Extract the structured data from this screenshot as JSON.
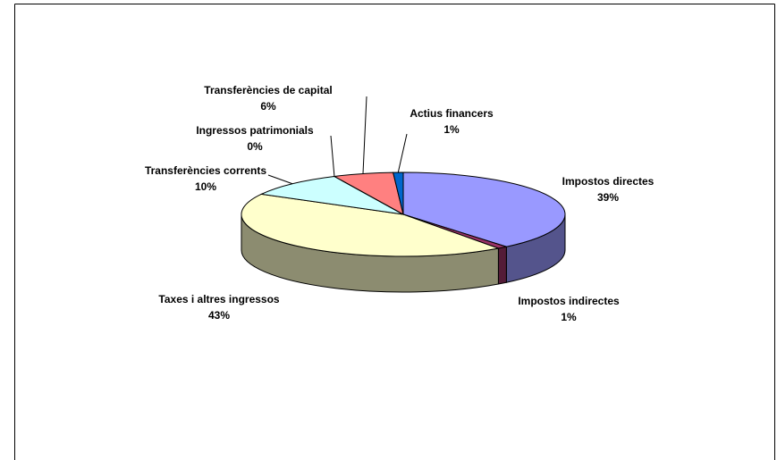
{
  "chart_data": {
    "type": "pie3d",
    "categories": [
      "Impostos directes",
      "Impostos indirectes",
      "Taxes i altres ingressos",
      "Transferències corrents",
      "Ingressos patrimonials",
      "Transferències de capital",
      "Actius financers"
    ],
    "values": [
      39,
      1,
      43,
      10,
      0,
      6,
      1
    ],
    "value_labels": [
      "39%",
      "1%",
      "43%",
      "10%",
      "0%",
      "6%",
      "1%"
    ],
    "colors": [
      "#9999ff",
      "#993366",
      "#ffffcc",
      "#ccffff",
      "#660066",
      "#ff8080",
      "#0066cc"
    ]
  }
}
